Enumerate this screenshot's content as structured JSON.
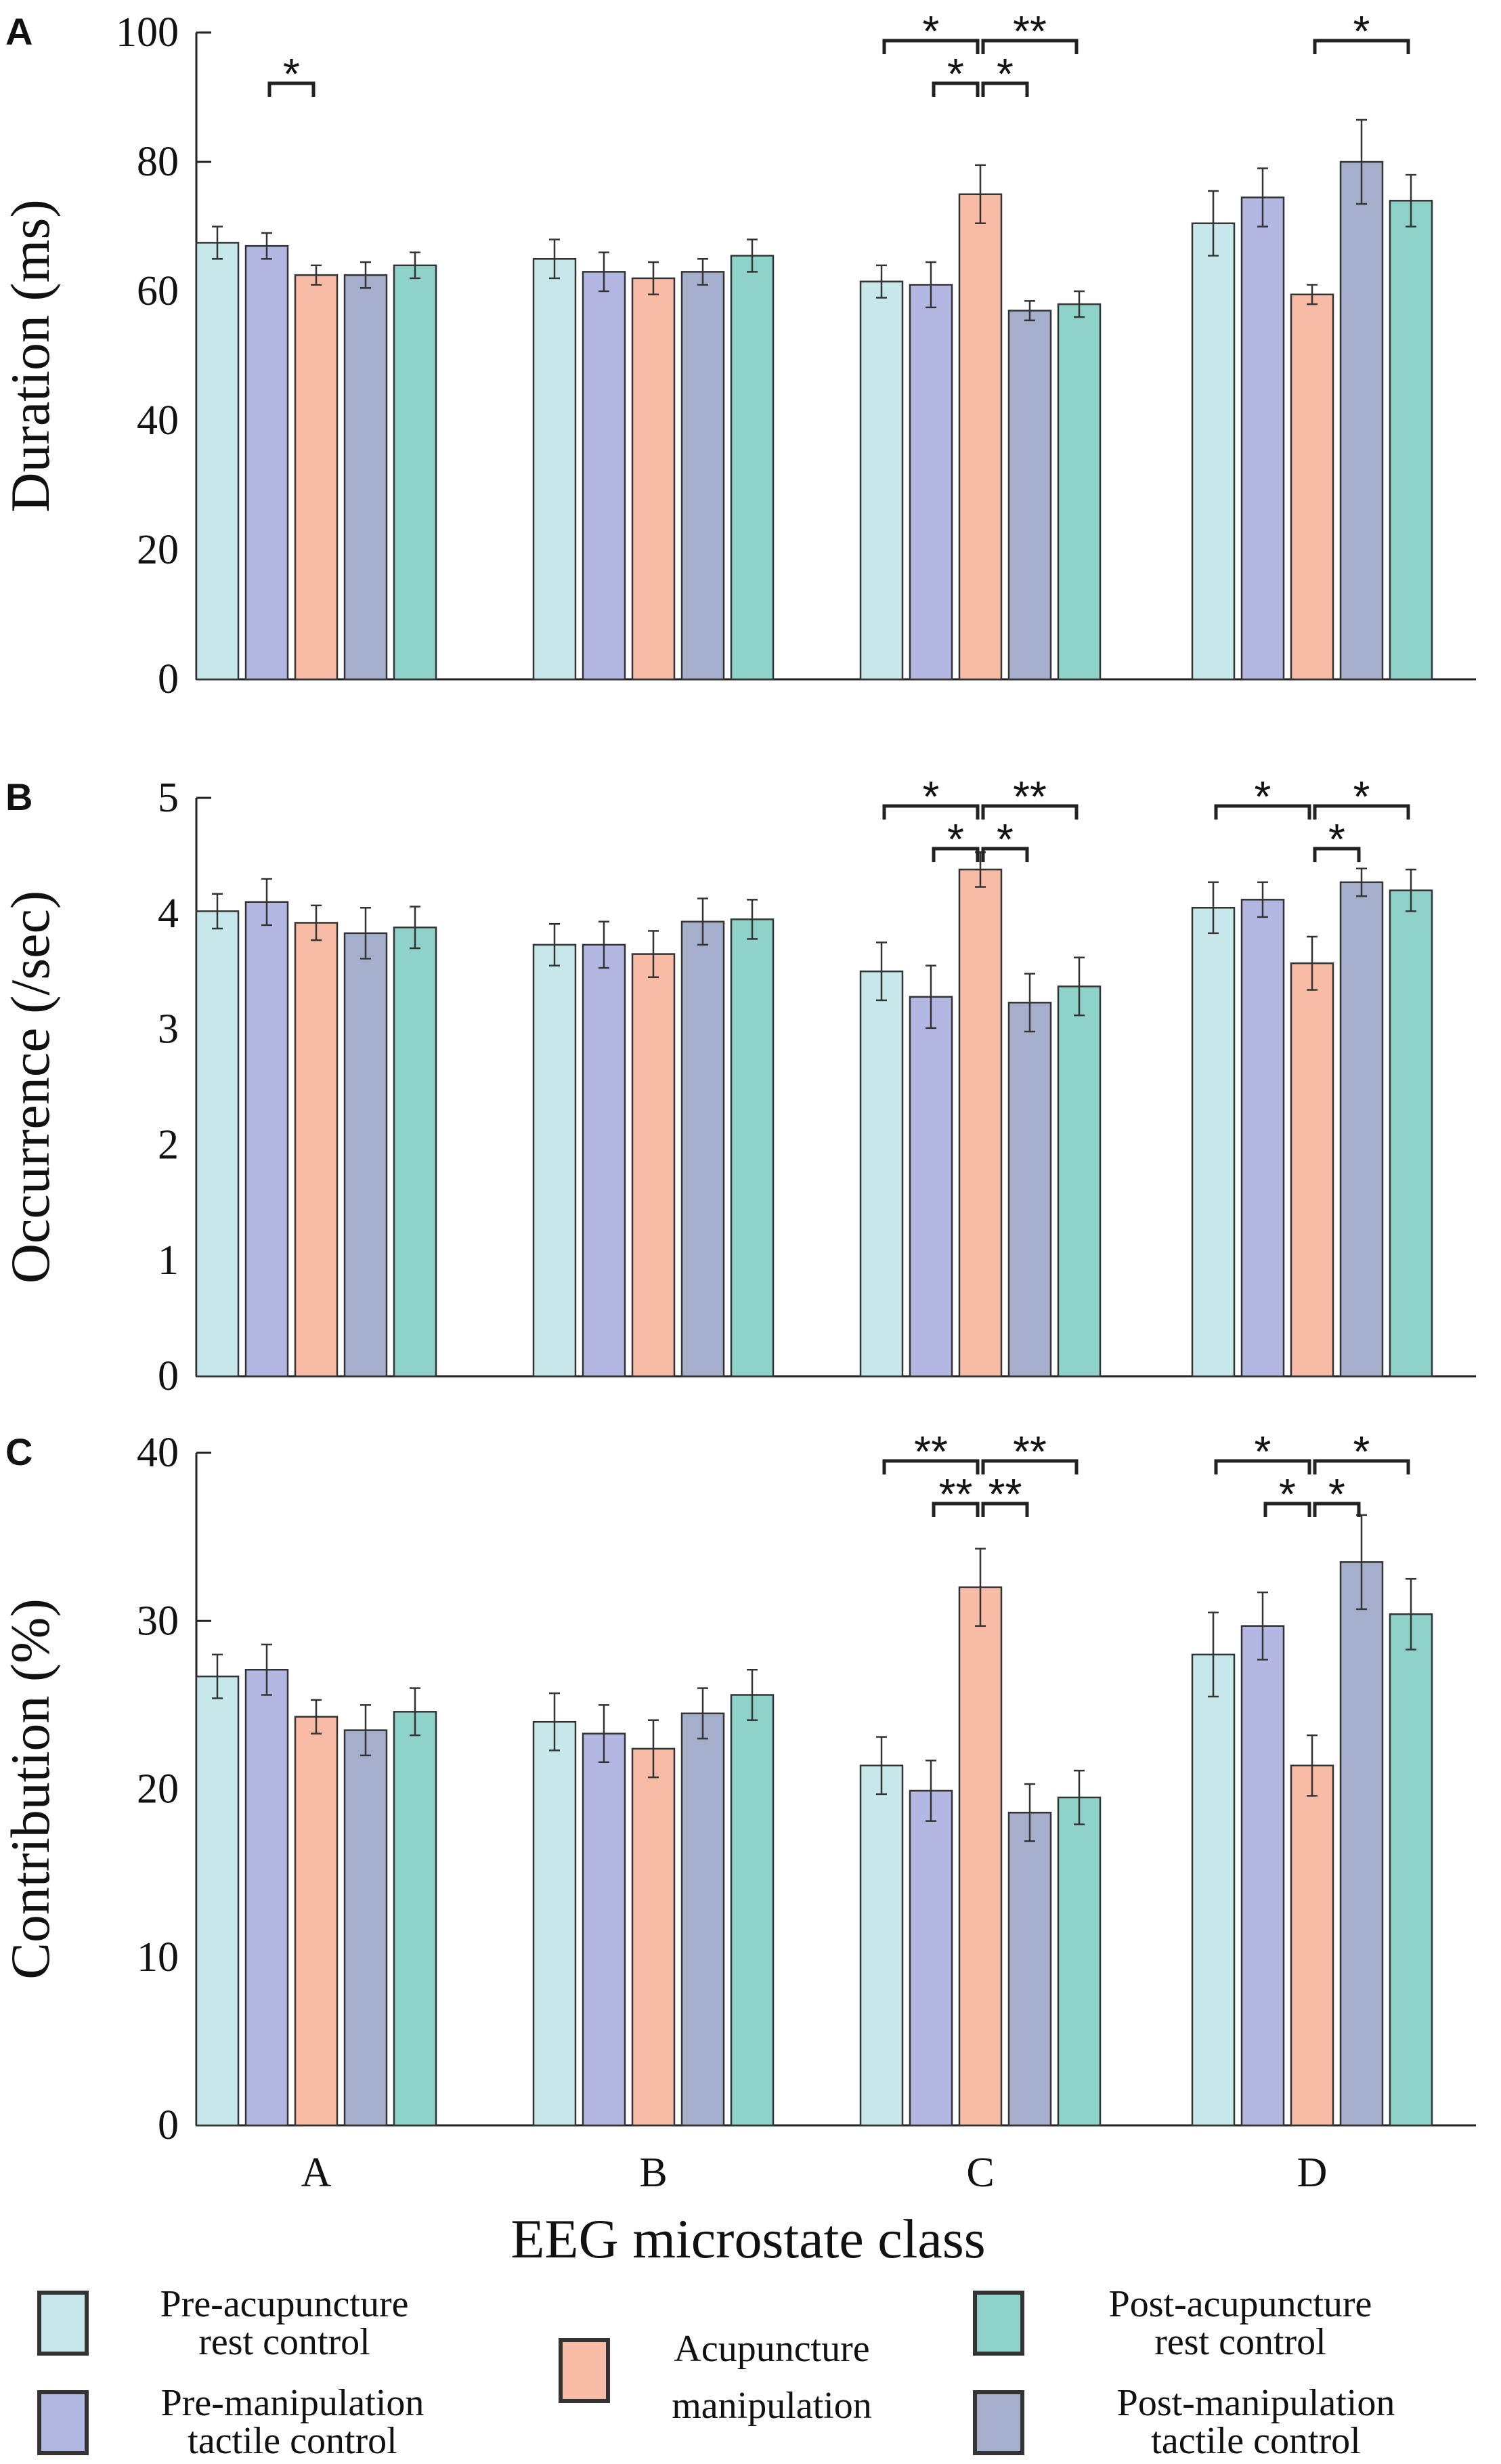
{
  "chart_data": [
    {
      "panel": "A",
      "type": "bar",
      "title": "",
      "xlabel": "",
      "ylabel": "Duration (ms)",
      "ylim": [
        0,
        100
      ],
      "yticks": [
        0,
        20,
        40,
        60,
        80,
        100
      ],
      "categories": [
        "A",
        "B",
        "C",
        "D"
      ],
      "series": [
        {
          "name": "Pre-acupuncture rest control",
          "values": [
            67.5,
            65,
            61.5,
            70.5
          ],
          "errors": [
            2.5,
            3,
            2.5,
            5
          ]
        },
        {
          "name": "Pre-manipulation tactile control",
          "values": [
            67,
            63,
            61,
            74.5
          ],
          "errors": [
            2,
            3,
            3.5,
            4.5
          ]
        },
        {
          "name": "Acupuncture manipulation",
          "values": [
            62.5,
            62,
            75,
            59.5
          ],
          "errors": [
            1.5,
            2.5,
            4.5,
            1.5
          ]
        },
        {
          "name": "Post-manipulation tactile control",
          "values": [
            62.5,
            63,
            57,
            80
          ],
          "errors": [
            2,
            2,
            1.5,
            6.5
          ]
        },
        {
          "name": "Post-acupuncture rest control",
          "values": [
            64,
            65.5,
            58,
            74
          ],
          "errors": [
            2,
            2.5,
            2,
            4
          ]
        }
      ],
      "significance": [
        {
          "group": "A",
          "from": 1,
          "to": 2,
          "label": "*",
          "level": 1
        },
        {
          "group": "C",
          "from": 0,
          "to": 2,
          "label": "*",
          "level": 2
        },
        {
          "group": "C",
          "from": 2,
          "to": 4,
          "label": "**",
          "level": 2
        },
        {
          "group": "C",
          "from": 1,
          "to": 2,
          "label": "*",
          "level": 1
        },
        {
          "group": "C",
          "from": 2,
          "to": 3,
          "label": "*",
          "level": 1
        },
        {
          "group": "D",
          "from": 2,
          "to": 4,
          "label": "*",
          "level": 2
        }
      ]
    },
    {
      "panel": "B",
      "type": "bar",
      "title": "",
      "xlabel": "",
      "ylabel": "Occurrence (/sec)",
      "ylim": [
        0,
        5
      ],
      "yticks": [
        0,
        1,
        2,
        3,
        4,
        5
      ],
      "categories": [
        "A",
        "B",
        "C",
        "D"
      ],
      "series": [
        {
          "name": "Pre-acupuncture rest control",
          "values": [
            4.02,
            3.73,
            3.5,
            4.05
          ],
          "errors": [
            0.15,
            0.18,
            0.25,
            0.22
          ]
        },
        {
          "name": "Pre-manipulation tactile control",
          "values": [
            4.1,
            3.73,
            3.28,
            4.12
          ],
          "errors": [
            0.2,
            0.2,
            0.27,
            0.15
          ]
        },
        {
          "name": "Acupuncture manipulation",
          "values": [
            3.92,
            3.65,
            4.38,
            3.57
          ],
          "errors": [
            0.15,
            0.2,
            0.15,
            0.23
          ]
        },
        {
          "name": "Post-manipulation tactile control",
          "values": [
            3.83,
            3.93,
            3.23,
            4.27
          ],
          "errors": [
            0.22,
            0.2,
            0.25,
            0.12
          ]
        },
        {
          "name": "Post-acupuncture rest control",
          "values": [
            3.88,
            3.95,
            3.37,
            4.2
          ],
          "errors": [
            0.18,
            0.17,
            0.25,
            0.18
          ]
        }
      ],
      "significance": [
        {
          "group": "C",
          "from": 0,
          "to": 2,
          "label": "*",
          "level": 2
        },
        {
          "group": "C",
          "from": 2,
          "to": 4,
          "label": "**",
          "level": 2
        },
        {
          "group": "C",
          "from": 1,
          "to": 2,
          "label": "*",
          "level": 1
        },
        {
          "group": "C",
          "from": 2,
          "to": 3,
          "label": "*",
          "level": 1
        },
        {
          "group": "D",
          "from": 0,
          "to": 2,
          "label": "*",
          "level": 2
        },
        {
          "group": "D",
          "from": 2,
          "to": 4,
          "label": "*",
          "level": 2
        },
        {
          "group": "D",
          "from": 2,
          "to": 3,
          "label": "*",
          "level": 1
        }
      ]
    },
    {
      "panel": "C",
      "type": "bar",
      "title": "",
      "xlabel": "EEG microstate class",
      "ylabel": "Contribution (%)",
      "ylim": [
        0,
        40
      ],
      "yticks": [
        0,
        10,
        20,
        30,
        40
      ],
      "categories": [
        "A",
        "B",
        "C",
        "D"
      ],
      "series": [
        {
          "name": "Pre-acupuncture rest control",
          "values": [
            26.7,
            24,
            21.4,
            28
          ],
          "errors": [
            1.3,
            1.7,
            1.7,
            2.5
          ]
        },
        {
          "name": "Pre-manipulation tactile control",
          "values": [
            27.1,
            23.3,
            19.9,
            29.7
          ],
          "errors": [
            1.5,
            1.7,
            1.8,
            2
          ]
        },
        {
          "name": "Acupuncture manipulation",
          "values": [
            24.3,
            22.4,
            32,
            21.4
          ],
          "errors": [
            1,
            1.7,
            2.3,
            1.8
          ]
        },
        {
          "name": "Post-manipulation tactile control",
          "values": [
            23.5,
            24.5,
            18.6,
            33.5
          ],
          "errors": [
            1.5,
            1.5,
            1.7,
            2.8
          ]
        },
        {
          "name": "Post-acupuncture rest control",
          "values": [
            24.6,
            25.6,
            19.5,
            30.4
          ],
          "errors": [
            1.4,
            1.5,
            1.6,
            2.1
          ]
        }
      ],
      "significance": [
        {
          "group": "C",
          "from": 0,
          "to": 2,
          "label": "**",
          "level": 2
        },
        {
          "group": "C",
          "from": 2,
          "to": 4,
          "label": "**",
          "level": 2
        },
        {
          "group": "C",
          "from": 1,
          "to": 2,
          "label": "**",
          "level": 1
        },
        {
          "group": "C",
          "from": 2,
          "to": 3,
          "label": "**",
          "level": 1
        },
        {
          "group": "D",
          "from": 0,
          "to": 2,
          "label": "*",
          "level": 2
        },
        {
          "group": "D",
          "from": 2,
          "to": 4,
          "label": "*",
          "level": 2
        },
        {
          "group": "D",
          "from": 1,
          "to": 2,
          "label": "*",
          "level": 1
        },
        {
          "group": "D",
          "from": 2,
          "to": 3,
          "label": "*",
          "level": 1
        }
      ]
    }
  ],
  "legend": [
    {
      "lines": [
        "Pre-acupuncture",
        "rest control"
      ],
      "color": "#c6e8ea"
    },
    {
      "lines": [
        "Pre-manipulation",
        "tactile control"
      ],
      "color": "#b3b8e2"
    },
    {
      "lines": [
        "Acupuncture",
        "manipulation"
      ],
      "color": "#f8bba6"
    },
    {
      "lines": [
        "Post-acupuncture",
        "rest control"
      ],
      "color": "#8fd2ca"
    },
    {
      "lines": [
        "Post-manipulation",
        "tactile control"
      ],
      "color": "#a5aecb"
    }
  ],
  "series_colors": [
    "#c6e8ea",
    "#b3b8e2",
    "#f8bba6",
    "#a5aecb",
    "#8fd2ca"
  ]
}
